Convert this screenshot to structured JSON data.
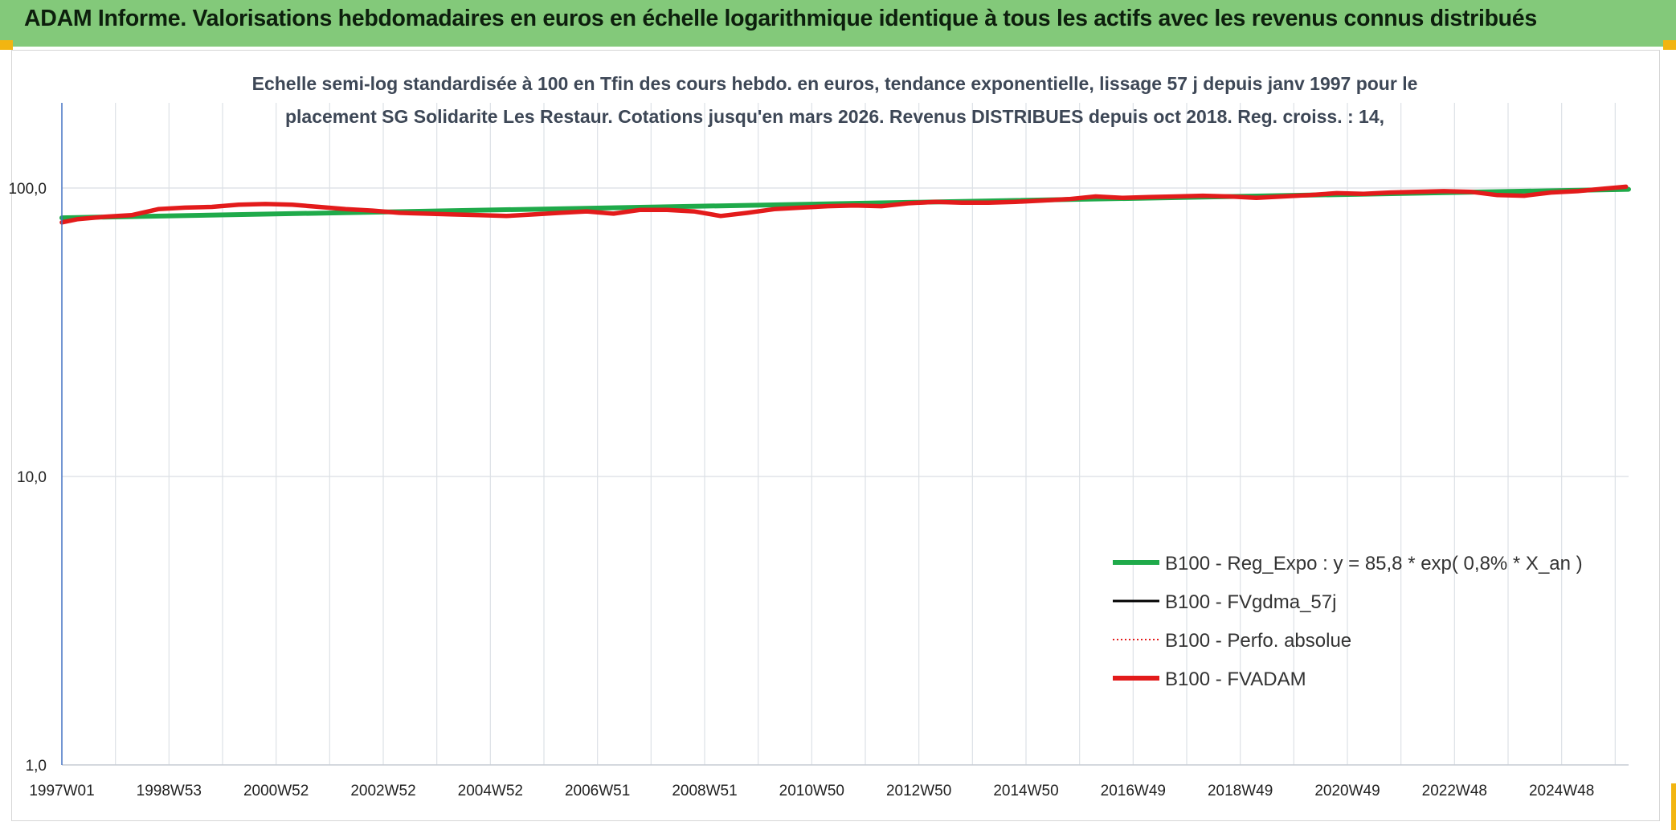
{
  "banner": {
    "title": "ADAM Informe. Valorisations hebdomadaires en euros en échelle logarithmique identique à tous les actifs avec les revenus connus distribués"
  },
  "colors": {
    "banner_bg": "#83c97a",
    "accent_corners": "#f2b511",
    "reg_expo": "#1faa4a",
    "fvgdma": "#000000",
    "perfo_absolue": "#e31b1b",
    "fvadam": "#e31b1b"
  },
  "chart_data": {
    "type": "line",
    "title": "",
    "subtitle_lines": [
      "Echelle semi-log standardisée à 100 en Tfin des cours hebdo. en euros, tendance exponentielle, lissage 57 j depuis janv 1997 pour le",
      "placement SG Solidarite Les Restaur. Cotations jusqu'en mars 2026. Revenus DISTRIBUES depuis oct 2018. Reg. croiss. : 14,"
    ],
    "y_scale": "log",
    "ylim": [
      1,
      100
    ],
    "y_tick_labels": [
      "100,0",
      "10,0",
      "1,0"
    ],
    "y_tick_values": [
      100,
      10,
      1
    ],
    "x_tick_labels": [
      "1997W01",
      "1998W53",
      "2000W52",
      "2002W52",
      "2004W52",
      "2006W51",
      "2008W51",
      "2010W50",
      "2012W50",
      "2014W50",
      "2016W49",
      "2018W49",
      "2020W49",
      "2022W48",
      "2024W48"
    ],
    "x_tick_years": [
      1997.0,
      1999.0,
      2001.0,
      2003.0,
      2005.0,
      2007.0,
      2009.0,
      2011.0,
      2013.0,
      2015.0,
      2017.0,
      2019.0,
      2021.0,
      2023.0,
      2025.0
    ],
    "xlim": [
      1997.0,
      2026.25
    ],
    "grid": true,
    "legend_position": "lower-right",
    "series": [
      {
        "name": "B100 - Reg_Expo : y = 85,8 * exp( 0,8% *  X_an )",
        "style": "solid-thick",
        "x": [
          1997.0,
          2026.25
        ],
        "y": [
          78.8,
          99.0
        ]
      },
      {
        "name": "B100 - FVgdma_57j",
        "style": "solid-thin",
        "x": [],
        "y": []
      },
      {
        "name": "B100 - Perfo. absolue",
        "style": "dotted",
        "x": [],
        "y": []
      },
      {
        "name": "B100 - FVADAM",
        "style": "solid-thick",
        "x": [
          1997.0,
          1997.3,
          1997.8,
          1998.3,
          1998.8,
          1999.3,
          1999.8,
          2000.3,
          2000.8,
          2001.3,
          2001.8,
          2002.3,
          2002.8,
          2003.3,
          2003.8,
          2004.3,
          2004.8,
          2005.3,
          2005.8,
          2006.3,
          2006.8,
          2007.3,
          2007.8,
          2008.3,
          2008.8,
          2009.3,
          2009.8,
          2010.3,
          2010.8,
          2011.3,
          2011.8,
          2012.3,
          2012.8,
          2013.3,
          2013.8,
          2014.3,
          2014.8,
          2015.3,
          2015.8,
          2016.3,
          2016.8,
          2017.3,
          2017.8,
          2018.3,
          2018.8,
          2019.3,
          2019.8,
          2020.3,
          2020.8,
          2021.3,
          2021.8,
          2022.3,
          2022.8,
          2023.3,
          2023.8,
          2024.3,
          2024.8,
          2025.3,
          2025.8,
          2026.2
        ],
        "y": [
          76.0,
          78.0,
          79.5,
          80.5,
          84.5,
          85.5,
          86.0,
          87.5,
          88.0,
          87.5,
          86.0,
          84.5,
          83.5,
          82.0,
          81.5,
          81.0,
          80.5,
          80.0,
          81.0,
          82.0,
          83.0,
          81.5,
          84.0,
          84.0,
          83.0,
          80.0,
          82.0,
          84.5,
          85.5,
          86.5,
          87.0,
          86.5,
          88.5,
          89.5,
          89.0,
          89.0,
          89.5,
          90.5,
          91.5,
          93.5,
          92.5,
          93.0,
          93.5,
          94.0,
          93.5,
          92.5,
          93.5,
          94.5,
          96.0,
          95.5,
          96.5,
          97.0,
          97.5,
          97.0,
          94.5,
          94.0,
          96.5,
          97.5,
          99.5,
          101.0
        ]
      }
    ]
  }
}
